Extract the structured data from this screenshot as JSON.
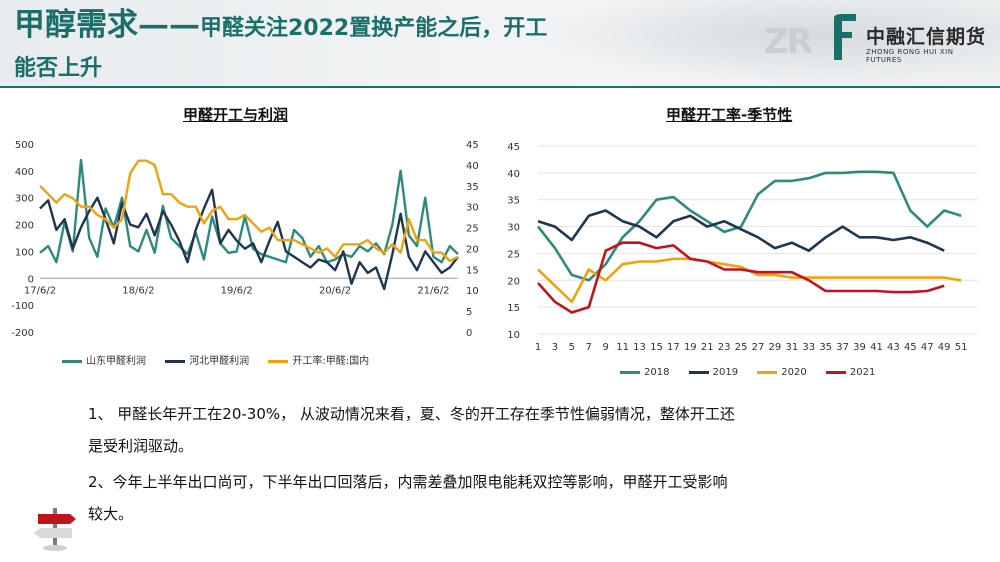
{
  "header": {
    "title_big": "甲醇需求——",
    "title_small": "甲醛关注2022置换产能之后，开工",
    "title_line2": "能否上升"
  },
  "logo": {
    "watermark": "ZR",
    "cn": "中融汇信期货",
    "en": "ZHONG RONG HUI XIN FUTURES"
  },
  "colors": {
    "accent": "#1b6f6a",
    "teal": "#2e8b7a",
    "navy": "#1f3550",
    "orange": "#f0a20e",
    "red": "#c0141c"
  },
  "chart_data": [
    {
      "type": "line",
      "title": "甲醛开工与利润",
      "x_tick_labels": [
        "17/6/2",
        "18/6/2",
        "19/6/2",
        "20/6/2",
        "21/6/2"
      ],
      "y_left_ticks": [
        "500",
        "400",
        "300",
        "200",
        "100",
        "0",
        "-100",
        "-200"
      ],
      "y_right_ticks": [
        "45",
        "40",
        "35",
        "30",
        "25",
        "20",
        "15",
        "10",
        "5",
        "0"
      ],
      "ylim_left": [
        -200,
        500
      ],
      "ylim_right": [
        0,
        45
      ],
      "x": [
        "17/6/2",
        "17/7",
        "17/8",
        "17/9",
        "17/10",
        "17/11",
        "17/12",
        "18/1",
        "18/2",
        "18/3",
        "18/4",
        "18/5",
        "18/6/2",
        "18/7",
        "18/8",
        "18/9",
        "18/10",
        "18/11",
        "18/12",
        "19/1",
        "19/2",
        "19/3",
        "19/4",
        "19/5",
        "19/6/2",
        "19/7",
        "19/8",
        "19/9",
        "19/10",
        "19/11",
        "19/12",
        "20/1",
        "20/2",
        "20/3",
        "20/4",
        "20/5",
        "20/6/2",
        "20/7",
        "20/8",
        "20/9",
        "20/10",
        "20/11",
        "20/12",
        "21/1",
        "21/2",
        "21/3",
        "21/4",
        "21/5",
        "21/6/2",
        "21/7",
        "21/8",
        "21/9"
      ],
      "series": [
        {
          "name": "山东甲醛利润",
          "axis": "left",
          "color": "#2e8b7a",
          "values": [
            95,
            120,
            60,
            210,
            100,
            440,
            150,
            80,
            260,
            190,
            300,
            120,
            100,
            180,
            95,
            270,
            150,
            120,
            90,
            170,
            70,
            230,
            130,
            95,
            100,
            230,
            110,
            90,
            80,
            70,
            60,
            180,
            150,
            80,
            120,
            60,
            70,
            90,
            80,
            120,
            100,
            130,
            90,
            200,
            400,
            160,
            120,
            300,
            80,
            60,
            120,
            90
          ]
        },
        {
          "name": "河北甲醛利润",
          "axis": "left",
          "color": "#1f3550",
          "values": [
            260,
            290,
            180,
            220,
            110,
            190,
            250,
            300,
            220,
            130,
            280,
            200,
            190,
            240,
            160,
            250,
            200,
            140,
            60,
            180,
            260,
            330,
            130,
            180,
            140,
            110,
            130,
            60,
            140,
            210,
            100,
            80,
            60,
            40,
            70,
            60,
            30,
            100,
            -20,
            60,
            20,
            40,
            -40,
            90,
            240,
            80,
            30,
            100,
            60,
            20,
            40,
            80
          ]
        },
        {
          "name": "开工率:甲醛:国内",
          "axis": "right",
          "color": "#f0a20e",
          "values": [
            35,
            33,
            31,
            33,
            32,
            30,
            30,
            28,
            27,
            25,
            27,
            38,
            41,
            41,
            40,
            33,
            33,
            31,
            30,
            30,
            26,
            29,
            30,
            27,
            27,
            28,
            26,
            24,
            25,
            22,
            22,
            22,
            21,
            20,
            19,
            20,
            18,
            21,
            21,
            21,
            22,
            20,
            19,
            21,
            19,
            27,
            22,
            22,
            19,
            19,
            17,
            18
          ]
        }
      ]
    },
    {
      "type": "line",
      "title": "甲醛开工率-季节性",
      "x_tick_labels": [
        "1",
        "3",
        "5",
        "7",
        "9",
        "11",
        "13",
        "15",
        "17",
        "19",
        "21",
        "23",
        "25",
        "27",
        "29",
        "31",
        "33",
        "35",
        "37",
        "39",
        "41",
        "43",
        "45",
        "47",
        "49",
        "51"
      ],
      "y_ticks": [
        "45",
        "40",
        "35",
        "30",
        "25",
        "20",
        "15",
        "10"
      ],
      "ylim": [
        10,
        45
      ],
      "series": [
        {
          "name": "2018",
          "color": "#2e8b7a",
          "x": [
            1,
            3,
            5,
            7,
            9,
            11,
            13,
            15,
            17,
            19,
            21,
            23,
            25,
            27,
            29,
            31,
            33,
            35,
            37,
            39,
            41,
            43,
            45,
            47,
            49,
            51
          ],
          "values": [
            30,
            26,
            21,
            20,
            23,
            28,
            31,
            35,
            35.5,
            33,
            31,
            29,
            30,
            36,
            38.5,
            38.5,
            39,
            40,
            40,
            40.2,
            40.2,
            40,
            33,
            30,
            33,
            32
          ]
        },
        {
          "name": "2019",
          "color": "#1f3550",
          "x": [
            1,
            3,
            5,
            7,
            9,
            11,
            13,
            15,
            17,
            19,
            21,
            23,
            25,
            27,
            29,
            31,
            33,
            35,
            37,
            39,
            41,
            43,
            45,
            47,
            49
          ],
          "values": [
            31,
            30,
            27.5,
            32,
            33,
            31,
            30,
            28,
            31,
            32,
            30,
            31,
            29.5,
            28,
            26,
            27,
            25.5,
            28,
            30,
            28,
            28,
            27.5,
            28,
            27,
            25.5
          ]
        },
        {
          "name": "2020",
          "color": "#f0a20e",
          "x": [
            1,
            3,
            5,
            7,
            9,
            11,
            13,
            15,
            17,
            19,
            21,
            23,
            25,
            27,
            29,
            31,
            33,
            35,
            37,
            39,
            41,
            43,
            45,
            47,
            49,
            51
          ],
          "values": [
            22,
            19,
            16,
            22,
            20,
            23,
            23.5,
            23.5,
            24,
            24,
            23.5,
            23,
            22.5,
            21,
            21,
            20.5,
            20.5,
            20.5,
            20.5,
            20.5,
            20.5,
            20.5,
            20.5,
            20.5,
            20.5,
            20
          ]
        },
        {
          "name": "2021",
          "color": "#c0141c",
          "x": [
            1,
            3,
            5,
            7,
            9,
            11,
            13,
            15,
            17,
            19,
            21,
            23,
            25,
            27,
            29,
            31,
            33,
            35,
            37,
            39,
            41,
            43,
            45,
            47,
            49
          ],
          "values": [
            19.5,
            16,
            14,
            15,
            25.5,
            27,
            27,
            26,
            26.5,
            24,
            23.5,
            22,
            22,
            21.5,
            21.5,
            21.5,
            20,
            18,
            18,
            18,
            18,
            17.8,
            17.8,
            18,
            19
          ]
        }
      ]
    }
  ],
  "body": {
    "p1_line1": "1、  甲醛长年开工在20-30%， 从波动情况来看，夏、冬的开工存在季节性偏弱情况，整体开工还",
    "p1_line2": "是受利润驱动。",
    "p2_line1": "2、今年上半年出口尚可，下半年出口回落后，内需差叠加限电能耗双控等影响，甲醛开工受影响",
    "p2_line2": "较大。"
  }
}
